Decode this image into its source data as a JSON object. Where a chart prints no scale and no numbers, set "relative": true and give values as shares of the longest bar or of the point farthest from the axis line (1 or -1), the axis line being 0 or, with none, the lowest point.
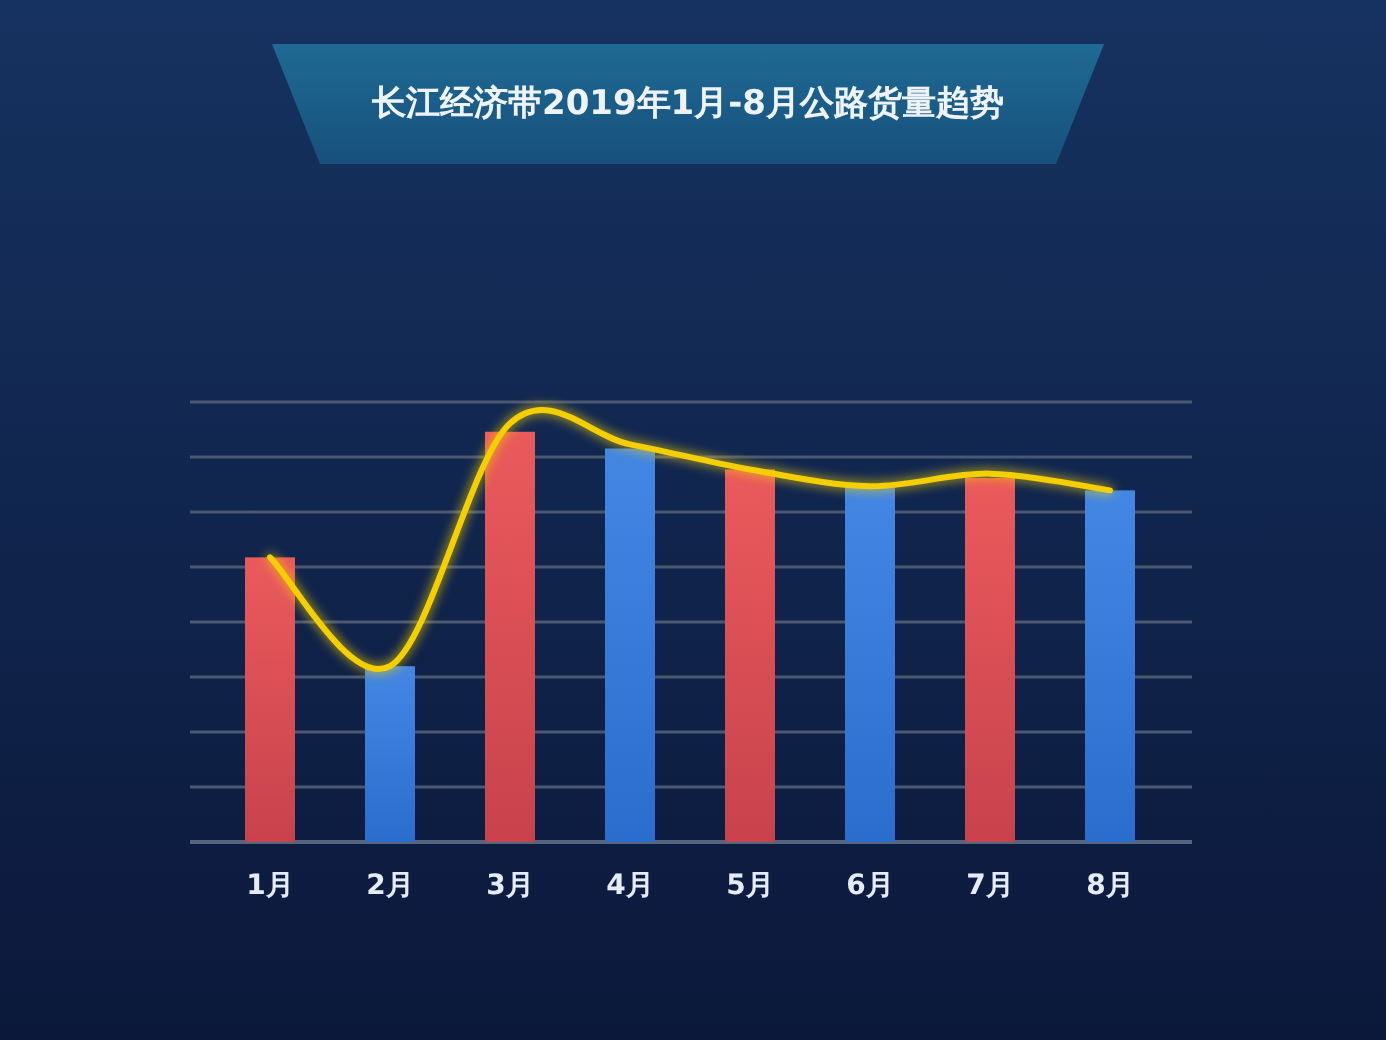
{
  "chart_data": {
    "type": "bar",
    "title": "长江经济带2019年1月-8月公路货量趋势",
    "categories": [
      "1月",
      "2月",
      "3月",
      "4月",
      "5月",
      "6月",
      "7月",
      "8月"
    ],
    "relative": true,
    "grid": "y",
    "series": [
      {
        "colors": [
          "#e8484a",
          "#2f7ae0",
          "#e8484a",
          "#2f7ae0",
          "#e8484a",
          "#2f7ae0",
          "#e8484a",
          "#2f7ae0"
        ],
        "values": [
          0.68,
          0.42,
          0.98,
          0.94,
          0.89,
          0.85,
          0.87,
          0.84
        ]
      },
      {
        "type": "line",
        "color": "#f5d000",
        "values": [
          0.68,
          0.42,
          1,
          0.95,
          0.89,
          0.85,
          0.88,
          0.84
        ]
      }
    ]
  }
}
